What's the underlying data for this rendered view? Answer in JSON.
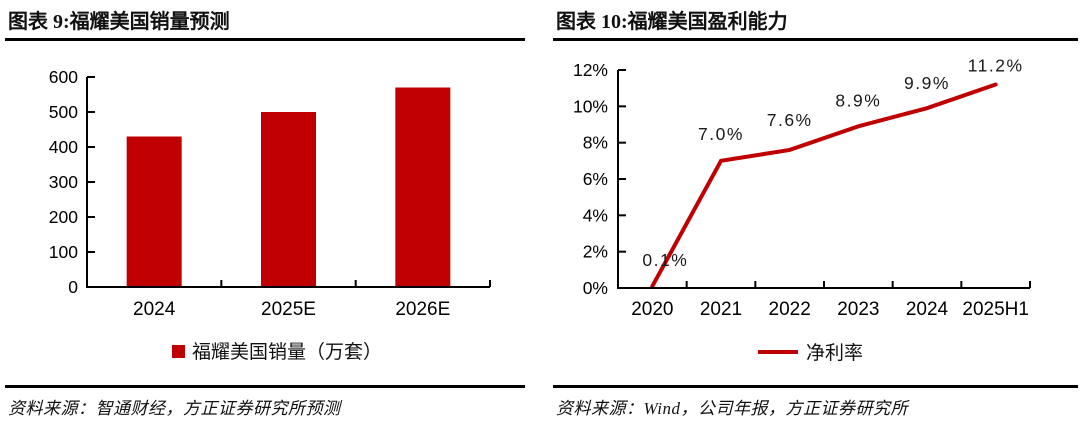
{
  "colors": {
    "accent_red": "#c00000",
    "axis_black": "#000000"
  },
  "panels": [
    {
      "title": "图表 9:福耀美国销量预测",
      "source": "资料来源：智通财经，方正证券研究所预测"
    },
    {
      "title": "图表 10:福耀美国盈利能力",
      "source": "资料来源：Wind，公司年报，方正证券研究所"
    }
  ],
  "chart_data": [
    {
      "type": "bar",
      "title": "福耀美国销量预测",
      "categories": [
        "2024",
        "2025E",
        "2026E"
      ],
      "values": [
        430,
        500,
        570
      ],
      "series_name": "福耀美国销量（万套）",
      "xlabel": "",
      "ylabel": "",
      "ylim": [
        0,
        600
      ],
      "yticks": [
        0,
        100,
        200,
        300,
        400,
        500,
        600
      ],
      "bar_color": "#c00000",
      "grid": false,
      "legend_position": "bottom"
    },
    {
      "type": "line",
      "title": "福耀美国盈利能力",
      "categories": [
        "2020",
        "2021",
        "2022",
        "2023",
        "2024",
        "2025H1"
      ],
      "values": [
        0.1,
        7.0,
        7.6,
        8.9,
        9.9,
        11.2
      ],
      "data_labels": [
        "0.1%",
        "7.0%",
        "7.6%",
        "8.9%",
        "9.9%",
        "11.2%"
      ],
      "series_name": "净利率",
      "xlabel": "",
      "ylabel": "",
      "ylim": [
        0,
        12
      ],
      "yticks": [
        "0%",
        "2%",
        "4%",
        "6%",
        "8%",
        "10%",
        "12%"
      ],
      "line_color": "#c00000",
      "grid": false,
      "legend_position": "bottom"
    }
  ]
}
